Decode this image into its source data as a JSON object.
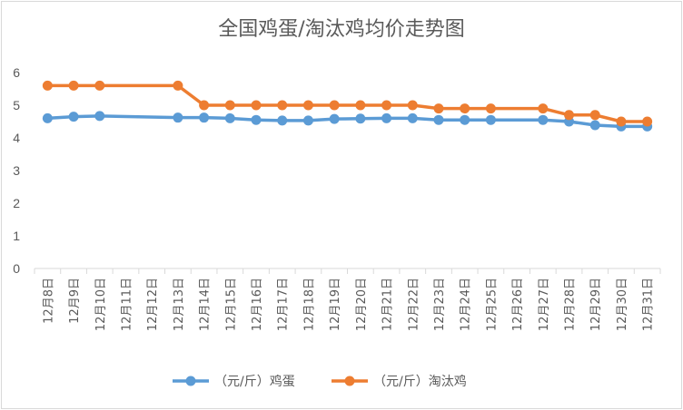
{
  "chart_data": {
    "type": "line",
    "title": "全国鸡蛋/淘汰鸡均价走势图",
    "xlabel": "",
    "ylabel": "",
    "ylim": [
      0,
      6
    ],
    "yticks": [
      0,
      1,
      2,
      3,
      4,
      5,
      6
    ],
    "grid": false,
    "legend_position": "bottom",
    "categories": [
      "12月8日",
      "12月9日",
      "12月10日",
      "12月11日",
      "12月12日",
      "12月13日",
      "12月14日",
      "12月15日",
      "12月16日",
      "12月17日",
      "12月18日",
      "12月19日",
      "12月20日",
      "12月21日",
      "12月22日",
      "12月23日",
      "12月24日",
      "12月25日",
      "12月26日",
      "12月27日",
      "12月28日",
      "12月29日",
      "12月30日",
      "12月31日"
    ],
    "series": [
      {
        "name": "（元/斤）鸡蛋",
        "color": "#5b9bd5",
        "values": [
          4.6,
          4.65,
          4.67,
          null,
          null,
          4.62,
          4.62,
          4.6,
          4.55,
          4.53,
          4.53,
          4.58,
          4.59,
          4.6,
          4.6,
          4.55,
          4.55,
          4.55,
          null,
          4.55,
          4.5,
          4.39,
          4.35,
          4.35
        ]
      },
      {
        "name": "（元/斤）淘汰鸡",
        "color": "#ed7d31",
        "values": [
          5.6,
          5.6,
          5.6,
          null,
          null,
          5.6,
          5.0,
          5.0,
          5.0,
          5.0,
          5.0,
          5.0,
          5.0,
          5.0,
          5.0,
          4.9,
          4.9,
          4.9,
          null,
          4.9,
          4.7,
          4.7,
          4.5,
          4.5
        ]
      }
    ]
  }
}
